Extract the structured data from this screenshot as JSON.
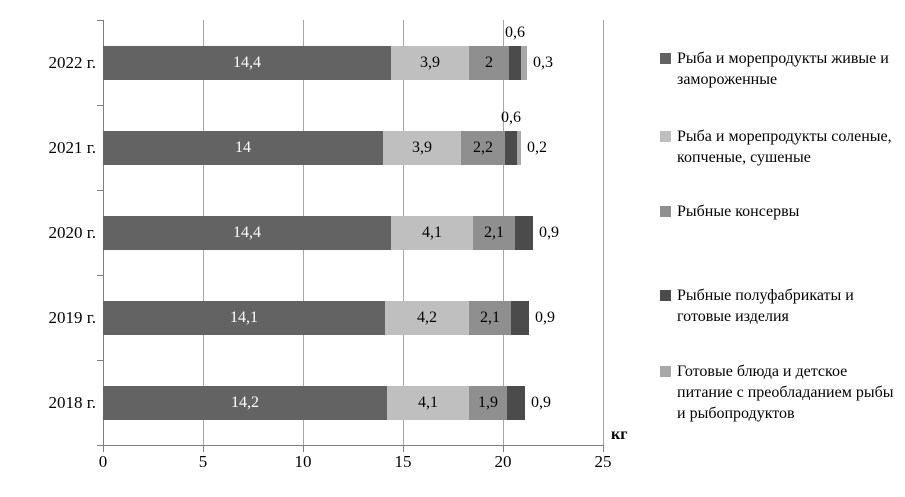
{
  "chart_data": {
    "type": "bar",
    "orientation": "horizontal",
    "stacked": true,
    "title": "",
    "xlabel": "кг",
    "ylabel": "",
    "xlim": [
      0,
      25
    ],
    "x_ticks": [
      "0",
      "5",
      "10",
      "15",
      "20",
      "25"
    ],
    "grid": true,
    "legend_position": "right",
    "categories": [
      "2022 г.",
      "2021 г.",
      "2020 г.",
      "2019 г.",
      "2018 г."
    ],
    "series": [
      {
        "name": "Рыба и морепродукты живые и замороженные",
        "color": "#636363",
        "label_color": "#ffffff",
        "values": [
          14.4,
          14,
          14.4,
          14.1,
          14.2
        ],
        "labels": [
          "14,4",
          "14",
          "14,4",
          "14,1",
          "14,2"
        ],
        "placement": [
          "inside",
          "inside",
          "inside",
          "inside",
          "inside"
        ]
      },
      {
        "name": "Рыба и морепродукты соленые, копченые, сушеные",
        "color": "#bfbfbf",
        "label_color": "#000000",
        "values": [
          3.9,
          3.9,
          4.1,
          4.2,
          4.1
        ],
        "labels": [
          "3,9",
          "3,9",
          "4,1",
          "4,2",
          "4,1"
        ],
        "placement": [
          "inside",
          "inside",
          "inside",
          "inside",
          "inside"
        ]
      },
      {
        "name": "Рыбные консервы",
        "color": "#8f8f8f",
        "label_color": "#000000",
        "values": [
          2,
          2.2,
          2.1,
          2.1,
          1.9
        ],
        "labels": [
          "2",
          "2,2",
          "2,1",
          "2,1",
          "1,9"
        ],
        "placement": [
          "inside",
          "inside",
          "inside",
          "inside",
          "inside"
        ]
      },
      {
        "name": "Рыбные полуфабрикаты и готовые изделия",
        "color": "#4b4b4b",
        "label_color": "#000000",
        "values": [
          0.6,
          0.6,
          0.9,
          0.9,
          0.9
        ],
        "labels": [
          "0,6",
          "0,6",
          "0,9",
          "0,9",
          "0,9"
        ],
        "placement": [
          "above",
          "above",
          "outside",
          "outside",
          "outside"
        ]
      },
      {
        "name": "Готовые блюда и детское питание  с преобладанием рыбы и рыбопродуктов",
        "color": "#a8a8a8",
        "label_color": "#000000",
        "values": [
          0.3,
          0.2,
          0,
          0,
          0
        ],
        "labels": [
          "0,3",
          "0,2",
          "",
          "",
          ""
        ],
        "placement": [
          "outside",
          "outside",
          "none",
          "none",
          "none"
        ]
      }
    ]
  }
}
